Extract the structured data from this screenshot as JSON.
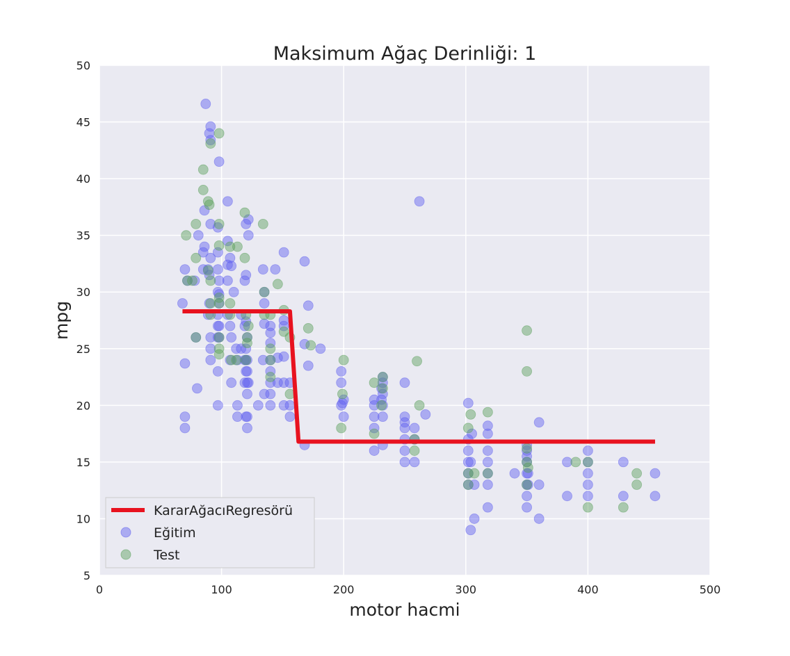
{
  "chart_data": {
    "type": "scatter",
    "title": "Maksimum Ağaç Derinliği: 1",
    "xlabel": "motor hacmi",
    "ylabel": "mpg",
    "xlim": [
      0,
      500
    ],
    "ylim": [
      5,
      50
    ],
    "xticks": [
      0,
      100,
      200,
      300,
      400,
      500
    ],
    "yticks": [
      5,
      10,
      15,
      20,
      25,
      30,
      35,
      40,
      45,
      50
    ],
    "grid": true,
    "legend_position": "lower-left",
    "legend": [
      "KararAğacıRegresörü",
      "Eğitim",
      "Test"
    ],
    "colors": {
      "plot_background": "#eaeaf2",
      "grid": "#ffffff",
      "regressor": "#e8121f",
      "train": "#6060f0",
      "test": "#5aa05a"
    },
    "series": [
      {
        "name": "KararAğacıRegresörü",
        "kind": "line",
        "points": [
          [
            68,
            28.3
          ],
          [
            156,
            28.3
          ],
          [
            163,
            16.8
          ],
          [
            455,
            16.8
          ]
        ]
      },
      {
        "name": "Eğitim",
        "kind": "scatter",
        "points": [
          [
            70,
            18
          ],
          [
            70,
            19
          ],
          [
            70,
            23.7
          ],
          [
            70,
            32
          ],
          [
            68,
            29
          ],
          [
            72,
            31
          ],
          [
            78,
            31
          ],
          [
            79,
            26
          ],
          [
            80,
            21.5
          ],
          [
            81,
            35
          ],
          [
            85,
            32
          ],
          [
            85,
            33.5
          ],
          [
            86,
            34
          ],
          [
            86,
            37.2
          ],
          [
            87,
            46.6
          ],
          [
            89,
            28
          ],
          [
            89,
            32
          ],
          [
            90,
            29
          ],
          [
            90,
            31.5
          ],
          [
            90,
            44
          ],
          [
            91,
            43.4
          ],
          [
            91,
            44.6
          ],
          [
            91,
            36
          ],
          [
            91,
            33
          ],
          [
            91,
            24
          ],
          [
            91,
            26
          ],
          [
            91,
            25
          ],
          [
            97,
            27
          ],
          [
            97,
            26
          ],
          [
            97,
            23
          ],
          [
            97,
            20
          ],
          [
            97,
            28
          ],
          [
            97,
            30
          ],
          [
            97,
            32
          ],
          [
            97,
            33.5
          ],
          [
            97,
            35.7
          ],
          [
            98,
            41.5
          ],
          [
            98,
            29.8
          ],
          [
            98,
            31
          ],
          [
            98,
            26
          ],
          [
            98,
            27
          ],
          [
            98,
            29
          ],
          [
            105,
            34.5
          ],
          [
            105,
            32.4
          ],
          [
            105,
            28
          ],
          [
            105,
            31
          ],
          [
            105,
            38
          ],
          [
            107,
            24
          ],
          [
            107,
            27
          ],
          [
            107,
            33
          ],
          [
            108,
            32.3
          ],
          [
            108,
            22
          ],
          [
            108,
            26
          ],
          [
            110,
            30
          ],
          [
            112,
            25
          ],
          [
            113,
            24
          ],
          [
            113,
            19
          ],
          [
            113,
            20
          ],
          [
            116,
            25
          ],
          [
            116,
            28
          ],
          [
            119,
            24
          ],
          [
            119,
            22
          ],
          [
            119,
            27
          ],
          [
            119,
            31
          ],
          [
            120,
            23
          ],
          [
            120,
            24
          ],
          [
            120,
            25
          ],
          [
            120,
            19
          ],
          [
            120,
            27.4
          ],
          [
            120,
            31.5
          ],
          [
            120,
            36
          ],
          [
            121,
            21
          ],
          [
            121,
            22
          ],
          [
            121,
            23
          ],
          [
            121,
            24
          ],
          [
            121,
            26
          ],
          [
            121,
            18
          ],
          [
            121,
            19
          ],
          [
            122,
            22
          ],
          [
            122,
            35
          ],
          [
            122,
            36.4
          ],
          [
            130,
            20
          ],
          [
            134,
            24
          ],
          [
            134,
            32
          ],
          [
            135,
            27.2
          ],
          [
            135,
            29
          ],
          [
            135,
            30
          ],
          [
            135,
            21
          ],
          [
            140,
            20
          ],
          [
            140,
            21
          ],
          [
            140,
            22
          ],
          [
            140,
            23
          ],
          [
            140,
            24
          ],
          [
            140,
            25.5
          ],
          [
            140,
            26.4
          ],
          [
            140,
            27
          ],
          [
            144,
            32
          ],
          [
            146,
            22
          ],
          [
            146,
            24.2
          ],
          [
            151,
            20
          ],
          [
            151,
            22
          ],
          [
            151,
            24.3
          ],
          [
            151,
            27
          ],
          [
            151,
            27.5
          ],
          [
            151,
            33.5
          ],
          [
            156,
            19
          ],
          [
            156,
            20
          ],
          [
            156,
            22
          ],
          [
            168,
            16.5
          ],
          [
            168,
            25.4
          ],
          [
            168,
            32.7
          ],
          [
            171,
            23.5
          ],
          [
            171,
            28.8
          ],
          [
            181,
            25
          ],
          [
            198,
            20
          ],
          [
            198,
            22
          ],
          [
            198,
            23
          ],
          [
            199,
            20.2
          ],
          [
            200,
            19
          ],
          [
            200,
            20.5
          ],
          [
            225,
            16
          ],
          [
            225,
            18
          ],
          [
            225,
            19
          ],
          [
            225,
            20
          ],
          [
            225,
            20.5
          ],
          [
            231,
            20.5
          ],
          [
            231,
            21.5
          ],
          [
            232,
            16.5
          ],
          [
            232,
            19
          ],
          [
            232,
            20
          ],
          [
            232,
            21
          ],
          [
            232,
            22
          ],
          [
            232,
            22.5
          ],
          [
            250,
            15
          ],
          [
            250,
            16
          ],
          [
            250,
            17
          ],
          [
            250,
            18
          ],
          [
            250,
            18.5
          ],
          [
            250,
            19
          ],
          [
            250,
            22
          ],
          [
            258,
            15
          ],
          [
            258,
            17
          ],
          [
            258,
            18
          ],
          [
            262,
            38
          ],
          [
            267,
            19.2
          ],
          [
            302,
            13
          ],
          [
            302,
            14
          ],
          [
            302,
            15
          ],
          [
            302,
            16
          ],
          [
            302,
            17
          ],
          [
            302,
            20.2
          ],
          [
            304,
            9
          ],
          [
            304,
            15
          ],
          [
            305,
            17.5
          ],
          [
            307,
            10
          ],
          [
            307,
            13
          ],
          [
            318,
            11
          ],
          [
            318,
            13
          ],
          [
            318,
            14
          ],
          [
            318,
            15
          ],
          [
            318,
            16
          ],
          [
            318,
            17.5
          ],
          [
            318,
            18.2
          ],
          [
            340,
            14
          ],
          [
            350,
            11
          ],
          [
            350,
            12
          ],
          [
            350,
            13
          ],
          [
            350,
            14
          ],
          [
            350,
            15
          ],
          [
            350,
            15.5
          ],
          [
            350,
            16
          ],
          [
            350,
            16.5
          ],
          [
            351,
            13
          ],
          [
            351,
            14
          ],
          [
            360,
            10
          ],
          [
            360,
            13
          ],
          [
            360,
            18.5
          ],
          [
            383,
            12
          ],
          [
            383,
            15
          ],
          [
            400,
            12
          ],
          [
            400,
            13
          ],
          [
            400,
            14
          ],
          [
            400,
            15
          ],
          [
            400,
            16
          ],
          [
            429,
            12
          ],
          [
            429,
            15
          ],
          [
            455,
            12
          ],
          [
            455,
            14
          ]
        ]
      },
      {
        "name": "Test",
        "kind": "scatter",
        "points": [
          [
            71,
            35
          ],
          [
            72,
            31
          ],
          [
            76,
            31
          ],
          [
            79,
            26
          ],
          [
            79,
            36
          ],
          [
            79,
            33
          ],
          [
            85,
            40.8
          ],
          [
            85,
            39
          ],
          [
            89,
            38
          ],
          [
            89,
            31.9
          ],
          [
            90,
            37.7
          ],
          [
            91,
            43.1
          ],
          [
            91,
            31
          ],
          [
            91,
            29
          ],
          [
            91,
            28
          ],
          [
            98,
            36
          ],
          [
            98,
            44
          ],
          [
            98,
            26
          ],
          [
            98,
            25
          ],
          [
            98,
            24.5
          ],
          [
            98,
            29
          ],
          [
            98,
            29.5
          ],
          [
            98,
            34.1
          ],
          [
            107,
            28
          ],
          [
            107,
            34
          ],
          [
            107,
            29
          ],
          [
            108,
            24
          ],
          [
            112,
            24
          ],
          [
            113,
            34
          ],
          [
            119,
            37
          ],
          [
            119,
            33
          ],
          [
            120,
            28
          ],
          [
            120,
            24
          ],
          [
            121,
            25.5
          ],
          [
            121,
            26
          ],
          [
            122,
            27
          ],
          [
            134,
            36
          ],
          [
            135,
            28
          ],
          [
            135,
            30
          ],
          [
            140,
            22.5
          ],
          [
            140,
            24
          ],
          [
            140,
            25
          ],
          [
            140,
            28
          ],
          [
            146,
            30.7
          ],
          [
            151,
            26.5
          ],
          [
            151,
            28.4
          ],
          [
            156,
            26
          ],
          [
            156,
            21
          ],
          [
            171,
            26.8
          ],
          [
            173,
            25.3
          ],
          [
            198,
            18
          ],
          [
            199,
            21
          ],
          [
            200,
            24
          ],
          [
            225,
            22
          ],
          [
            225,
            17.5
          ],
          [
            231,
            20
          ],
          [
            232,
            22.5
          ],
          [
            232,
            21.5
          ],
          [
            258,
            16
          ],
          [
            258,
            17
          ],
          [
            260,
            23.9
          ],
          [
            262,
            20
          ],
          [
            302,
            13
          ],
          [
            302,
            14
          ],
          [
            302,
            18
          ],
          [
            304,
            19.2
          ],
          [
            307,
            14
          ],
          [
            318,
            14
          ],
          [
            318,
            19.4
          ],
          [
            350,
            15
          ],
          [
            350,
            16.2
          ],
          [
            350,
            26.6
          ],
          [
            350,
            23
          ],
          [
            350,
            13
          ],
          [
            351,
            14.5
          ],
          [
            390,
            15
          ],
          [
            400,
            11
          ],
          [
            400,
            15
          ],
          [
            440,
            13
          ],
          [
            440,
            14
          ],
          [
            429,
            11
          ]
        ]
      }
    ]
  }
}
